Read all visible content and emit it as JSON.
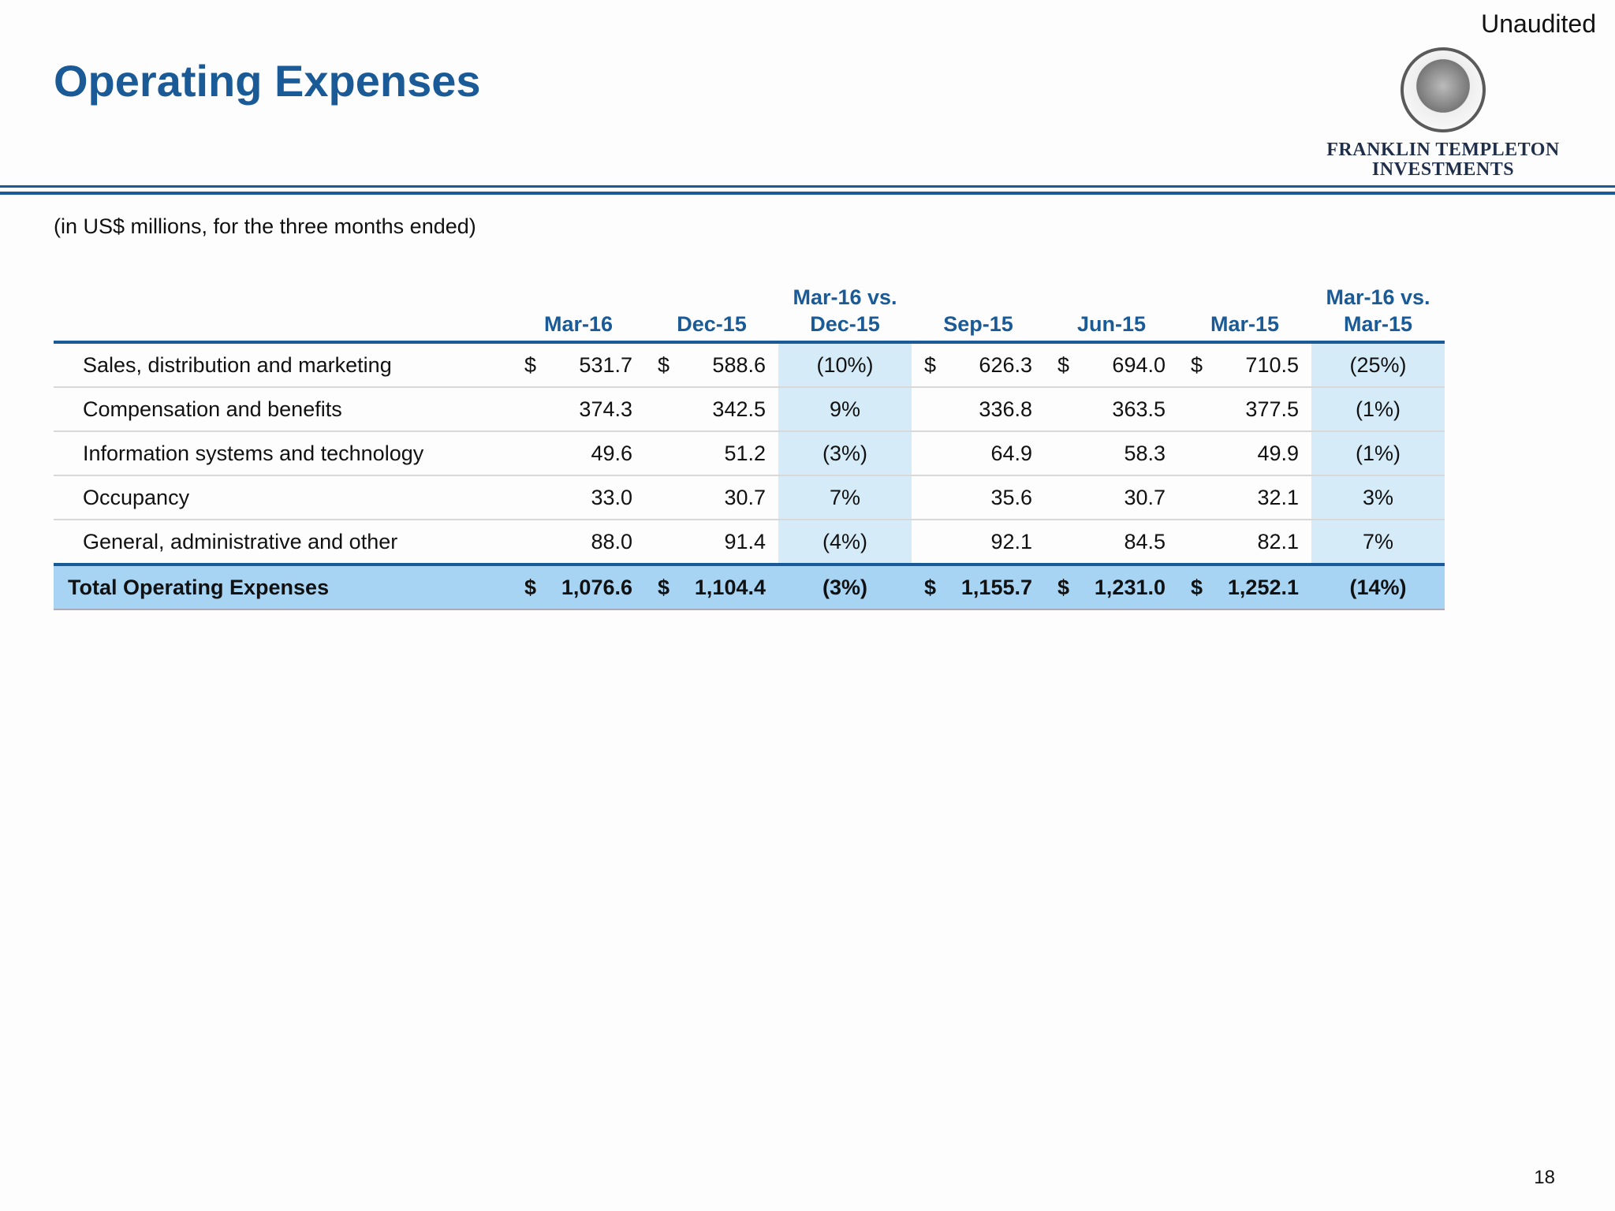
{
  "header": {
    "status": "Unaudited",
    "title": "Operating Expenses",
    "logo": {
      "line1": "FRANKLIN TEMPLETON",
      "line2": "INVESTMENTS"
    }
  },
  "subtitle": "(in US$ millions, for the three months ended)",
  "table": {
    "columns": [
      "Mar-16",
      "Dec-15",
      "Mar-16 vs. Dec-15",
      "Sep-15",
      "Jun-15",
      "Mar-15",
      "Mar-16 vs. Mar-15"
    ],
    "rows": [
      {
        "label": "Sales, distribution and marketing",
        "cells": [
          {
            "symbol": "$",
            "amount": "531.7"
          },
          {
            "symbol": "$",
            "amount": "588.6"
          },
          "(10%)",
          {
            "symbol": "$",
            "amount": "626.3"
          },
          {
            "symbol": "$",
            "amount": "694.0"
          },
          {
            "symbol": "$",
            "amount": "710.5"
          },
          "(25%)"
        ]
      },
      {
        "label": "Compensation and benefits",
        "cells": [
          "374.3",
          "342.5",
          "9%",
          "336.8",
          "363.5",
          "377.5",
          "(1%)"
        ]
      },
      {
        "label": "Information systems and technology",
        "cells": [
          "49.6",
          "51.2",
          "(3%)",
          "64.9",
          "58.3",
          "49.9",
          "(1%)"
        ]
      },
      {
        "label": "Occupancy",
        "cells": [
          "33.0",
          "30.7",
          "7%",
          "35.6",
          "30.7",
          "32.1",
          "3%"
        ]
      },
      {
        "label": "General, administrative and other",
        "cells": [
          "88.0",
          "91.4",
          "(4%)",
          "92.1",
          "84.5",
          "82.1",
          "7%"
        ]
      }
    ],
    "total": {
      "label": "Total Operating Expenses",
      "cells": [
        {
          "symbol": "$",
          "amount": "1,076.6"
        },
        {
          "symbol": "$",
          "amount": "1,104.4"
        },
        "(3%)",
        {
          "symbol": "$",
          "amount": "1,155.7"
        },
        {
          "symbol": "$",
          "amount": "1,231.0"
        },
        {
          "symbol": "$",
          "amount": "1,252.1"
        },
        "(14%)"
      ]
    }
  },
  "footer": {
    "page": "18"
  }
}
